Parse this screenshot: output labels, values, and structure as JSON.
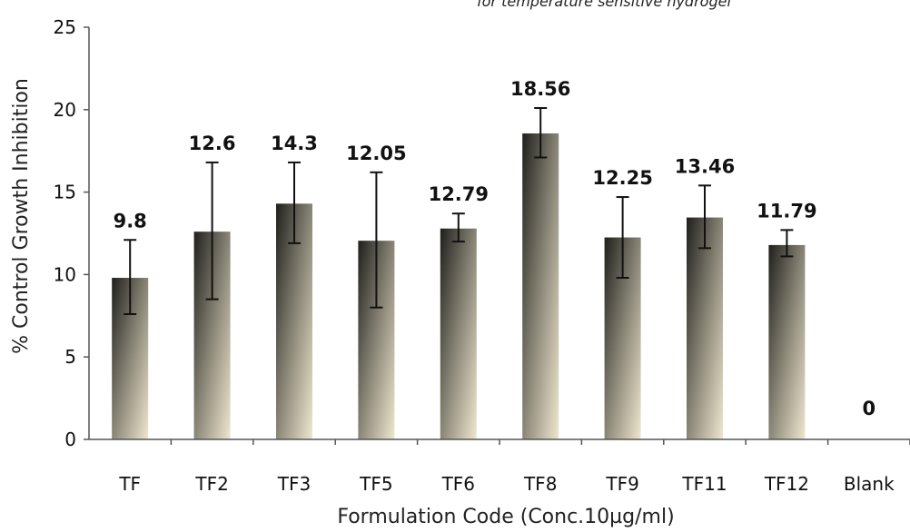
{
  "header_fragment": "for temperature sensitive hydrogel",
  "chart_data": {
    "type": "bar",
    "title": "",
    "xlabel": "Formulation Code (Conc.10µg/ml)",
    "ylabel": "% Control Growth Inhibition",
    "ylim": [
      0,
      25
    ],
    "yticks": [
      0,
      5,
      10,
      15,
      20,
      25
    ],
    "grid": false,
    "legend": "none",
    "categories": [
      "TF",
      "TF2",
      "TF3",
      "TF5",
      "TF6",
      "TF8",
      "TF9",
      "TF11",
      "TF12",
      "Blank"
    ],
    "values": [
      9.8,
      12.6,
      14.3,
      12.05,
      12.79,
      18.56,
      12.25,
      13.46,
      11.79,
      0
    ],
    "value_labels": [
      "9.8",
      "12.6",
      "14.3",
      "12.05",
      "12.79",
      "18.56",
      "12.25",
      "13.46",
      "11.79",
      "0"
    ],
    "error_low": [
      7.6,
      8.5,
      11.9,
      8.0,
      12.0,
      17.1,
      9.8,
      11.6,
      11.1,
      0
    ],
    "error_high": [
      12.1,
      16.8,
      16.8,
      16.2,
      13.7,
      20.1,
      14.7,
      15.4,
      12.7,
      0
    ],
    "colors": {
      "bar_top": "#1f1f1c",
      "bar_mid": "#8a8677",
      "bar_bottom": "#efe7cf",
      "axis": "#555555",
      "text": "#111111"
    }
  }
}
